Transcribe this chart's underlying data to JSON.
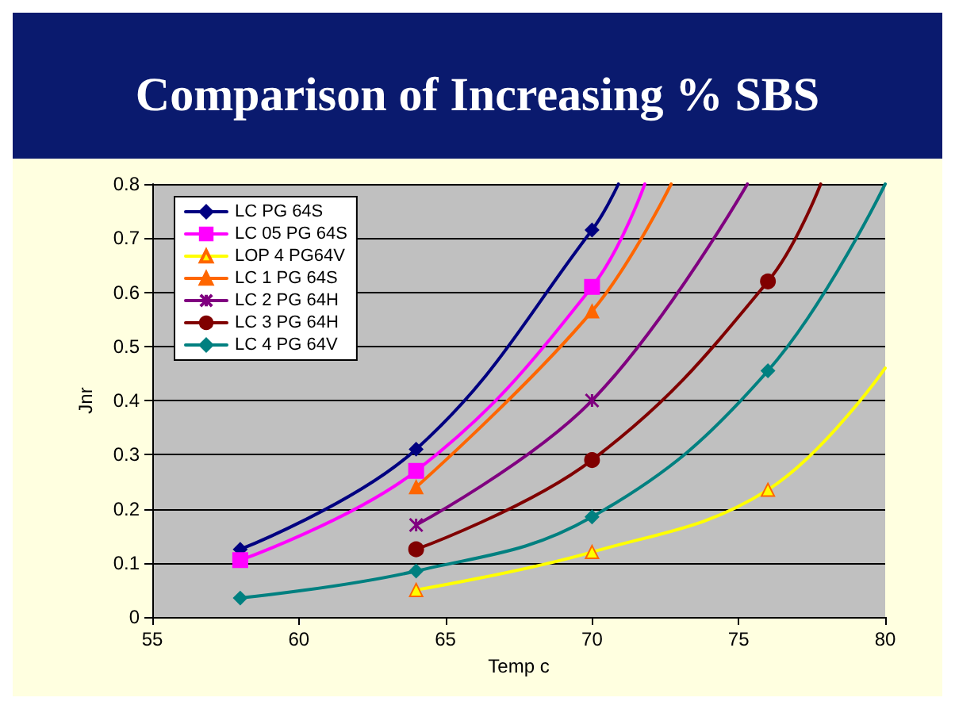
{
  "chart_data": {
    "type": "line",
    "title": "Comparison of Increasing % SBS",
    "xlabel": "Temp c",
    "ylabel": "Jnr",
    "xlim": [
      55,
      80
    ],
    "xticks": [
      55,
      60,
      65,
      70,
      75,
      80
    ],
    "ylim": [
      0,
      0.8
    ],
    "yticks": [
      0,
      0.1,
      0.2,
      0.3,
      0.4,
      0.5,
      0.6,
      0.7,
      0.8
    ],
    "grid": "y",
    "legend": "top left",
    "line_style": "solid",
    "series": [
      {
        "name": "LC PG 64S",
        "color": "#000080",
        "marker": "diamond",
        "x": [
          58,
          64,
          70,
          70.9
        ],
        "values": [
          0.125,
          0.31,
          0.715,
          0.8
        ]
      },
      {
        "name": "LC 05 PG 64S",
        "color": "#ff00ff",
        "marker": "square",
        "x": [
          58,
          64,
          70,
          71.8
        ],
        "values": [
          0.105,
          0.27,
          0.61,
          0.8
        ]
      },
      {
        "name": "LOP 4 PG64V",
        "color": "#ffff00",
        "marker": "triangle",
        "x": [
          64,
          70,
          76,
          80
        ],
        "values": [
          0.05,
          0.12,
          0.235,
          0.46
        ]
      },
      {
        "name": "LC 1 PG 64S",
        "color": "#ff6600",
        "marker": "triangle",
        "x": [
          64,
          70,
          72.7
        ],
        "values": [
          0.24,
          0.565,
          0.8
        ]
      },
      {
        "name": "LC 2 PG 64H",
        "color": "#800080",
        "marker": "cross",
        "x": [
          64,
          70,
          75.3
        ],
        "values": [
          0.17,
          0.4,
          0.8
        ]
      },
      {
        "name": "LC 3 PG 64H",
        "color": "#800000",
        "marker": "circle",
        "x": [
          64,
          70,
          76,
          77.8
        ],
        "values": [
          0.125,
          0.29,
          0.62,
          0.8
        ]
      },
      {
        "name": "LC 4 PG 64V",
        "color": "#008080",
        "marker": "diamond",
        "x": [
          58,
          64,
          70,
          76,
          80
        ],
        "values": [
          0.035,
          0.085,
          0.185,
          0.455,
          0.8
        ]
      }
    ]
  }
}
